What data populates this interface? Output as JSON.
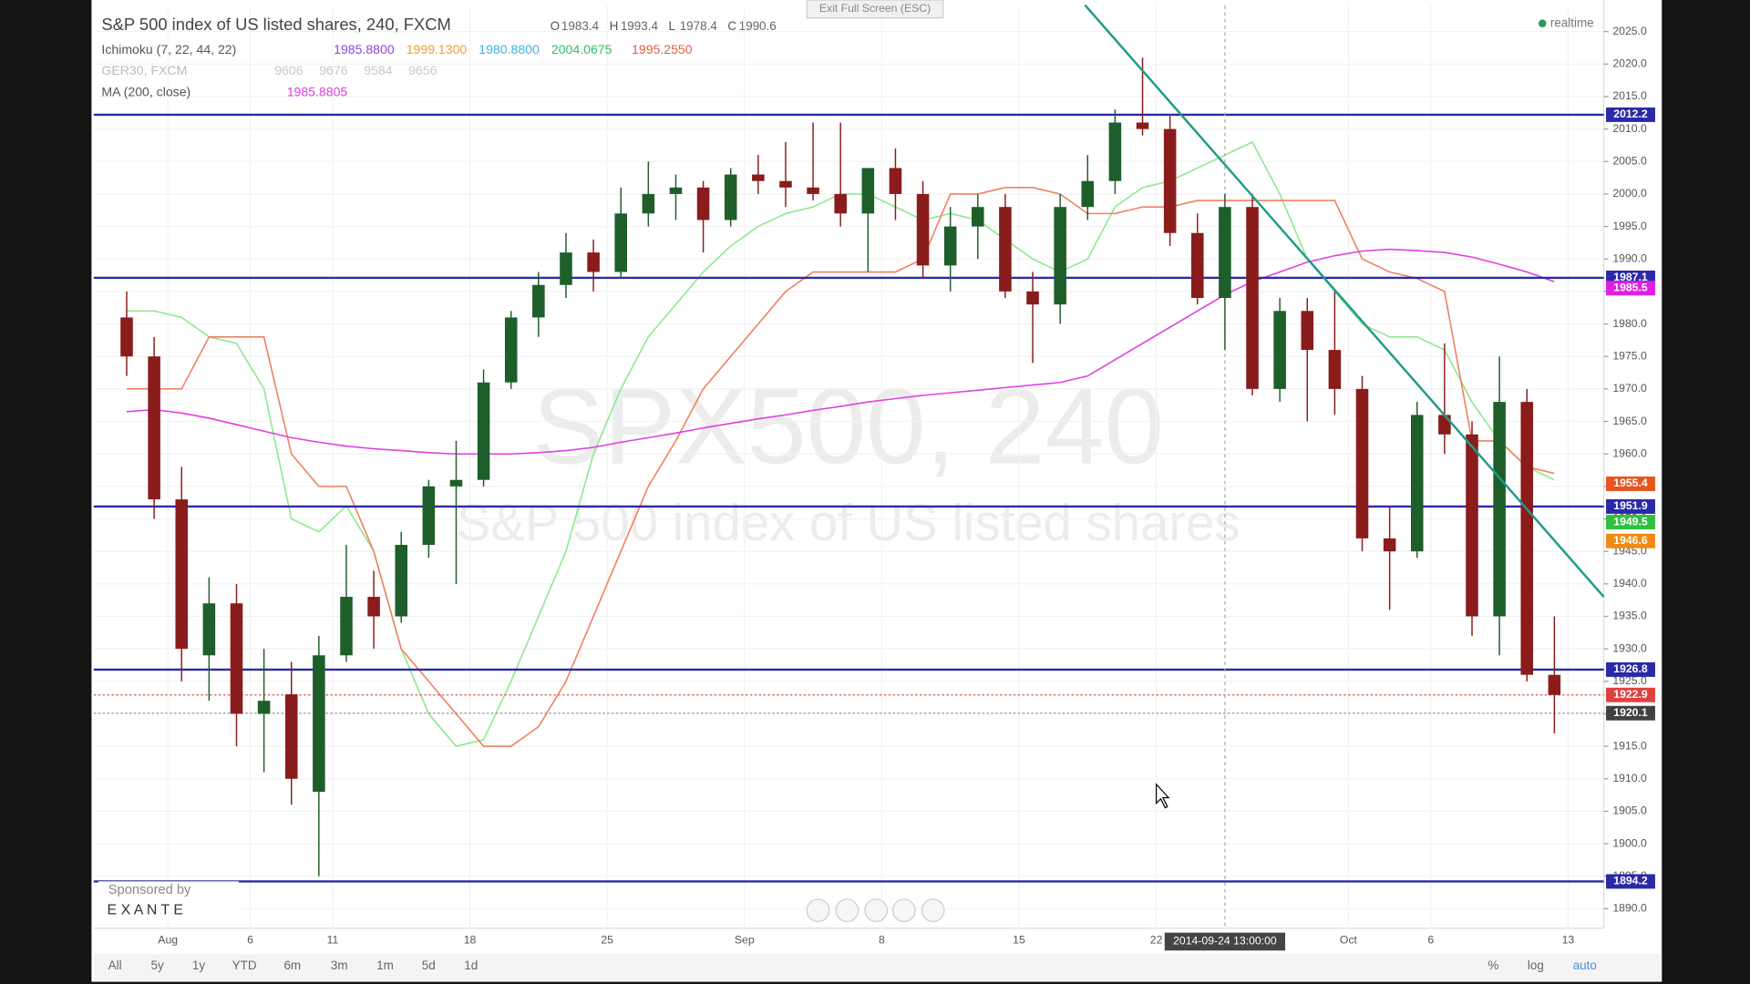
{
  "chart_data": {
    "type": "candlestick",
    "title": "S&P 500 index of US listed shares, 240, FXCM",
    "ohlc": [
      {
        "label": "O",
        "value": 1983.4
      },
      {
        "label": "H",
        "value": 1993.4
      },
      {
        "label": "L",
        "value": 1978.4
      },
      {
        "label": "C",
        "value": 1990.6
      }
    ],
    "legend": [
      {
        "name": "Ichimoku (7, 22, 44, 22)",
        "values": [
          "1985.8800",
          "1999.1300",
          "1980.8800",
          "2004.0675",
          "1995.2550"
        ],
        "colors": [
          "#8e44e0",
          "#f0a030",
          "#40b0e0",
          "#30c060",
          "#e06040"
        ]
      },
      {
        "name": "GER30, FXCM",
        "values": [
          "9606",
          "9676",
          "9584",
          "9656"
        ],
        "colors": [
          "#c8c8c8",
          "#c8c8c8",
          "#c8c8c8",
          "#c8c8c8"
        ]
      },
      {
        "name": "MA (200, close)",
        "values": [
          "1985.8805"
        ],
        "colors": [
          "#e040e0"
        ]
      }
    ],
    "watermark": [
      "SPX500, 240",
      "S&P 500 index of US listed shares"
    ],
    "x": [
      -2,
      -1,
      0,
      1,
      2,
      3,
      4,
      5,
      6,
      7,
      8,
      9,
      10,
      11,
      12,
      13,
      14,
      15,
      16,
      17,
      18,
      19,
      20,
      21,
      22,
      23,
      24,
      25,
      26,
      27,
      28,
      29,
      30,
      31,
      32,
      33,
      34,
      35,
      36,
      37,
      38,
      39,
      40,
      41,
      42,
      43,
      44,
      45,
      46,
      47,
      48,
      49,
      50
    ],
    "open": [
      1981,
      1975,
      1953,
      1929,
      1937,
      1920,
      1923,
      1908,
      1929,
      1938,
      1935,
      1946,
      1955,
      1956,
      1971,
      1981,
      1986,
      1991,
      1988,
      1997,
      2000,
      2001,
      1996,
      2003,
      2002,
      2001,
      2000,
      1997,
      2004,
      2000,
      1989,
      1995,
      1998,
      1985,
      1983,
      1998,
      2002,
      2011,
      2010,
      1994,
      1984,
      1998,
      1970,
      1982,
      1976,
      1970,
      1947,
      1945,
      1966,
      1963,
      1935,
      1968,
      1926
    ],
    "high": [
      1985,
      1978,
      1958,
      1941,
      1940,
      1930,
      1928,
      1932,
      1946,
      1942,
      1948,
      1956,
      1962,
      1973,
      1982,
      1988,
      1994,
      1993,
      2001,
      2005,
      2003,
      2002,
      2004,
      2006,
      2008,
      2011,
      2011,
      2004,
      2007,
      2002,
      1998,
      2000,
      2000,
      1988,
      2000,
      2006,
      2013,
      2021,
      2012,
      1997,
      2000,
      2000,
      1984,
      1984,
      1985,
      1972,
      1952,
      1968,
      1977,
      1965,
      1975,
      1970,
      1935
    ],
    "low": [
      1972,
      1950,
      1925,
      1922,
      1915,
      1911,
      1906,
      1895,
      1928,
      1930,
      1934,
      1944,
      1940,
      1955,
      1970,
      1978,
      1984,
      1985,
      1987,
      1995,
      1996,
      1991,
      1995,
      2000,
      1998,
      1999,
      1995,
      1988,
      1996,
      1987,
      1985,
      1990,
      1984,
      1974,
      1980,
      1996,
      2000,
      2009,
      1992,
      1983,
      1976,
      1969,
      1968,
      1965,
      1966,
      1945,
      1936,
      1944,
      1960,
      1932,
      1929,
      1925,
      1917
    ],
    "close": [
      1975,
      1953,
      1930,
      1937,
      1920,
      1922,
      1910,
      1929,
      1938,
      1935,
      1946,
      1955,
      1956,
      1971,
      1981,
      1986,
      1991,
      1988,
      1997,
      2000,
      2001,
      1996,
      2003,
      2002,
      2001,
      2000,
      1997,
      2004,
      2000,
      1989,
      1995,
      1998,
      1985,
      1983,
      1998,
      2002,
      2011,
      2010,
      1994,
      1984,
      1998,
      1970,
      1982,
      1976,
      1970,
      1947,
      1945,
      1966,
      1963,
      1935,
      1968,
      1926,
      1922.9
    ],
    "up_color": "#1e5e2a",
    "down_color": "#8a1c1c",
    "indicators": [
      {
        "color": "#8ee88e",
        "values": [
          1982,
          1982,
          1981,
          1978,
          1977,
          1970,
          1950,
          1948,
          1952,
          1945,
          1930,
          1920,
          1915,
          1916,
          1925,
          1935,
          1945,
          1960,
          1970,
          1978,
          1983,
          1988,
          1992,
          1995,
          1997,
          1998,
          2000,
          2000,
          1998,
          1996,
          1997,
          1996,
          1993,
          1990,
          1988,
          1990,
          1998,
          2001,
          2002,
          2004,
          2006,
          2008,
          2000,
          1990,
          1985,
          1980,
          1978,
          1978,
          1976,
          1968,
          1962,
          1958,
          1956
        ]
      },
      {
        "color": "#f08060",
        "values": [
          1970,
          1970,
          1970,
          1978,
          1978,
          1978,
          1960,
          1955,
          1955,
          1945,
          1930,
          1925,
          1920,
          1915,
          1915,
          1918,
          1925,
          1935,
          1945,
          1955,
          1962,
          1970,
          1975,
          1980,
          1985,
          1988,
          1988,
          1988,
          1988,
          1990,
          2000,
          2000,
          2001,
          2001,
          2000,
          1997,
          1997,
          1998,
          1998,
          1999,
          1999,
          1999,
          1999,
          1999,
          1999,
          1990,
          1988,
          1987,
          1985,
          1962,
          1962,
          1958,
          1957
        ]
      },
      {
        "color": "#e040e0",
        "values": [
          1966.5,
          1966.8,
          1966.3,
          1965.5,
          1964.5,
          1963.5,
          1962.5,
          1961.8,
          1961.2,
          1960.8,
          1960.5,
          1960.2,
          1960.0,
          1960.0,
          1960.0,
          1960.2,
          1960.5,
          1961.0,
          1961.8,
          1962.5,
          1963.2,
          1964.0,
          1964.7,
          1965.4,
          1966.0,
          1966.7,
          1967.3,
          1968.0,
          1968.5,
          1969.0,
          1969.4,
          1969.8,
          1970.2,
          1970.6,
          1971.0,
          1972.0,
          1974.5,
          1977.0,
          1979.5,
          1982.0,
          1984.5,
          1986.5,
          1988.0,
          1989.5,
          1990.5,
          1991.2,
          1991.5,
          1991.3,
          1991.0,
          1990.3,
          1989.2,
          1988.0,
          1986.5
        ]
      }
    ],
    "levels": [
      2012.2,
      1987.1,
      1951.9,
      1926.8,
      1894.2
    ],
    "level_color": "#2a2aa8",
    "dotted_lines": [
      {
        "value": 1922.9,
        "color": "#e05050"
      },
      {
        "value": 1920.1,
        "color": "#999999"
      }
    ],
    "trendline": {
      "x": [
        33.4,
        52.3
      ],
      "values": [
        2029.1,
        1938.0
      ],
      "color": "#1f9a8a"
    },
    "price_labels": [
      {
        "value": 2012.2,
        "color": "#2a2aa8"
      },
      {
        "value": 1987.1,
        "color": "#2a2aa8"
      },
      {
        "value": 1985.5,
        "color": "#e020e0"
      },
      {
        "value": 1955.4,
        "color": "#e8541c"
      },
      {
        "value": 1951.9,
        "color": "#2a2aa8"
      },
      {
        "value": 1949.5,
        "color": "#2fc040"
      },
      {
        "value": 1946.6,
        "color": "#f08a10"
      },
      {
        "value": 1926.8,
        "color": "#2a2aa8"
      },
      {
        "value": 1922.9,
        "color": "#e04040"
      },
      {
        "value": 1920.1,
        "color": "#404040"
      },
      {
        "value": 1894.2,
        "color": "#2a2aa8"
      }
    ],
    "crosshair": {
      "x": 38.5,
      "label": "2014-09-24 13:00:00"
    },
    "xlim": [
      -2.7,
      52.3
    ],
    "ylim": [
      1887,
      2029
    ],
    "xticks": [
      {
        "value": 0,
        "label": "Aug"
      },
      {
        "value": 3,
        "label": "6"
      },
      {
        "value": 6,
        "label": "11"
      },
      {
        "value": 11,
        "label": "18"
      },
      {
        "value": 16,
        "label": "25"
      },
      {
        "value": 21,
        "label": "Sep"
      },
      {
        "value": 26,
        "label": "8"
      },
      {
        "value": 31,
        "label": "15"
      },
      {
        "value": 36,
        "label": "22"
      },
      {
        "value": 43,
        "label": "Oct"
      },
      {
        "value": 46,
        "label": "6"
      },
      {
        "value": 51,
        "label": "13"
      }
    ],
    "yticks": [
      {
        "value": 1890,
        "label": "1890.0"
      },
      {
        "value": 1895,
        "label": "1895.0"
      },
      {
        "value": 1900,
        "label": "1900.0"
      },
      {
        "value": 1905,
        "label": "1905.0"
      },
      {
        "value": 1910,
        "label": "1910.0"
      },
      {
        "value": 1915,
        "label": "1915.0"
      },
      {
        "value": 1920,
        "label": "1920.0"
      },
      {
        "value": 1925,
        "label": "1925.0"
      },
      {
        "value": 1930,
        "label": "1930.0"
      },
      {
        "value": 1935,
        "label": "1935.0"
      },
      {
        "value": 1940,
        "label": "1940.0"
      },
      {
        "value": 1945,
        "label": "1945.0"
      },
      {
        "value": 1950,
        "label": "1950.0"
      },
      {
        "value": 1955,
        "label": "1955.0"
      },
      {
        "value": 1960,
        "label": "1960.0"
      },
      {
        "value": 1965,
        "label": "1965.0"
      },
      {
        "value": 1970,
        "label": "1970.0"
      },
      {
        "value": 1975,
        "label": "1975.0"
      },
      {
        "value": 1980,
        "label": "1980.0"
      },
      {
        "value": 1985,
        "label": "1985.0"
      },
      {
        "value": 1990,
        "label": "1990.0"
      },
      {
        "value": 1995,
        "label": "1995.0"
      },
      {
        "value": 2000,
        "label": "2000.0"
      },
      {
        "value": 2005,
        "label": "2005.0"
      },
      {
        "value": 2010,
        "label": "2010.0"
      },
      {
        "value": 2015,
        "label": "2015.0"
      },
      {
        "value": 2020,
        "label": "2020.0"
      },
      {
        "value": 2025,
        "label": "2025.0"
      }
    ],
    "grid": true
  },
  "ui": {
    "realtime": "realtime",
    "exit_fullscreen": "Exit Full Screen (ESC)",
    "sponsor": "Sponsored by",
    "brand": "E X A N T E",
    "ranges": [
      "All",
      "5y",
      "1y",
      "YTD",
      "6m",
      "3m",
      "1m",
      "5d",
      "1d"
    ],
    "right_buttons": [
      "%",
      "log",
      "auto"
    ]
  }
}
